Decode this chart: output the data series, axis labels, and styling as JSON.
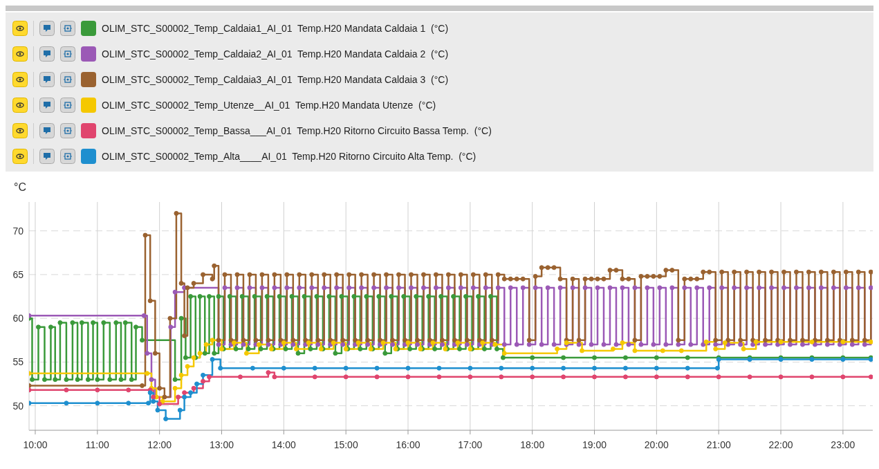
{
  "chart_data": {
    "type": "step",
    "ylabel": "°C",
    "legend": "top",
    "grid": true,
    "marker": "circle",
    "line_style": "solid",
    "xlim": [
      9.9,
      23.48
    ],
    "ylim": [
      47.2,
      73.3
    ],
    "yticks": [
      50,
      55,
      60,
      65,
      70
    ],
    "xticks": [
      {
        "value": 10,
        "label": "10:00"
      },
      {
        "value": 11,
        "label": "11:00"
      },
      {
        "value": 12,
        "label": "12:00"
      },
      {
        "value": 13,
        "label": "13:00"
      },
      {
        "value": 14,
        "label": "14:00"
      },
      {
        "value": 15,
        "label": "15:00"
      },
      {
        "value": 16,
        "label": "16:00"
      },
      {
        "value": 17,
        "label": "17:00"
      },
      {
        "value": 18,
        "label": "18:00"
      },
      {
        "value": 19,
        "label": "19:00"
      },
      {
        "value": 20,
        "label": "20:00"
      },
      {
        "value": 21,
        "label": "21:00"
      },
      {
        "value": 22,
        "label": "22:00"
      },
      {
        "value": 23,
        "label": "23:00"
      }
    ],
    "series": [
      {
        "name": "OLIM_STC_S00002_Temp_Caldaia1_AI_01  Temp.H20 Mandata Caldaia 1  (°C)",
        "color": "#3a9a3a",
        "x": [
          9.9,
          9.95,
          10.05,
          10.15,
          10.25,
          10.32,
          10.4,
          10.5,
          10.6,
          10.68,
          10.75,
          10.85,
          10.93,
          11.0,
          11.1,
          11.2,
          11.3,
          11.38,
          11.45,
          11.55,
          11.62,
          11.72,
          12.25,
          12.35,
          12.42,
          12.5,
          12.58,
          12.65,
          12.73,
          12.8,
          12.88,
          12.95,
          13.03,
          13.13,
          13.23,
          13.33,
          13.43,
          13.53,
          13.63,
          13.73,
          13.83,
          13.93,
          14.03,
          14.13,
          14.23,
          14.33,
          14.43,
          14.53,
          14.63,
          14.73,
          14.83,
          14.93,
          15.03,
          15.13,
          15.23,
          15.33,
          15.43,
          15.53,
          15.63,
          15.73,
          15.83,
          15.93,
          16.03,
          16.13,
          16.23,
          16.33,
          16.43,
          16.53,
          16.63,
          16.73,
          16.83,
          16.93,
          17.03,
          17.13,
          17.23,
          17.33,
          17.43,
          17.53,
          18.0,
          18.5,
          19.0,
          19.5,
          20.0,
          20.5,
          21.0,
          21.5,
          22.0,
          22.5,
          23.0,
          23.45
        ],
        "values": [
          60,
          53,
          59,
          53,
          59,
          53,
          59.5,
          53,
          59.5,
          53,
          59.5,
          53,
          59.5,
          53,
          59.5,
          53,
          59.5,
          53,
          59.5,
          53,
          59,
          57.5,
          53,
          60,
          55.5,
          62.5,
          55.5,
          62.5,
          56,
          62.5,
          56,
          62.5,
          56.5,
          62.5,
          56.5,
          62.5,
          56.5,
          62.5,
          56.5,
          62.5,
          56.5,
          62.5,
          56.5,
          62.5,
          56,
          62.5,
          56.5,
          62.5,
          56.5,
          62.5,
          56,
          62.5,
          56.5,
          62.5,
          56.5,
          62.5,
          56.5,
          62.5,
          56,
          62.5,
          56.5,
          62.5,
          56.5,
          62.5,
          56.5,
          62.5,
          56.5,
          62.5,
          56.5,
          62.5,
          56.5,
          62.5,
          56.5,
          62.5,
          56.5,
          62.5,
          56.5,
          55.5,
          55.5,
          55.5,
          55.5,
          55.5,
          55.5,
          55.5,
          55.5,
          55.5,
          55.5,
          55.5,
          55.5,
          55.5
        ]
      },
      {
        "name": "OLIM_STC_S00002_Temp_Caldaia2_AI_01  Temp.H20 Mandata Caldaia 2  (°C)",
        "color": "#9b59b6",
        "x": [
          9.9,
          11.75,
          11.8,
          11.87,
          11.93,
          12.18,
          12.25,
          12.4,
          12.95,
          13.05,
          13.15,
          13.25,
          13.35,
          13.45,
          13.55,
          13.65,
          13.75,
          13.85,
          13.95,
          14.05,
          14.15,
          14.25,
          14.35,
          14.45,
          14.55,
          14.65,
          14.75,
          14.85,
          14.95,
          15.05,
          15.15,
          15.25,
          15.35,
          15.45,
          15.55,
          15.65,
          15.75,
          15.85,
          15.95,
          16.05,
          16.15,
          16.25,
          16.35,
          16.45,
          16.55,
          16.65,
          16.75,
          16.85,
          16.95,
          17.05,
          17.15,
          17.25,
          17.35,
          17.45,
          17.55,
          17.65,
          17.75,
          17.85,
          17.95,
          18.05,
          18.15,
          18.25,
          18.35,
          18.45,
          18.55,
          18.65,
          18.75,
          18.85,
          18.95,
          19.05,
          19.15,
          19.25,
          19.35,
          19.45,
          19.55,
          19.65,
          19.75,
          19.85,
          19.95,
          20.05,
          20.15,
          20.25,
          20.35,
          20.45,
          20.55,
          20.65,
          20.75,
          20.85,
          20.95,
          21.05,
          21.15,
          21.25,
          21.35,
          21.45,
          21.55,
          21.65,
          21.75,
          21.85,
          21.95,
          22.05,
          22.15,
          22.25,
          22.35,
          22.45,
          22.55,
          22.65,
          22.75,
          22.85,
          22.95,
          23.05,
          23.15,
          23.25,
          23.35,
          23.45
        ],
        "values": [
          60.3,
          60.3,
          56,
          53,
          51,
          59,
          63,
          63.5,
          57,
          63.5,
          57,
          63.5,
          57,
          63.5,
          57,
          63.5,
          57,
          63.5,
          57,
          63.5,
          57,
          63.5,
          57,
          63.5,
          57,
          63.5,
          57,
          63.5,
          57,
          63.5,
          57,
          63.5,
          57,
          63.5,
          57,
          63.5,
          57,
          63.5,
          57,
          63.5,
          57,
          63.5,
          57,
          63.5,
          57,
          63.5,
          57,
          63.5,
          57,
          63.5,
          57,
          63.5,
          57,
          63.5,
          57,
          63.5,
          57,
          63.5,
          57,
          63.5,
          57,
          63.5,
          57,
          63.5,
          57,
          63.5,
          57,
          63.5,
          57,
          63.5,
          57,
          63.5,
          57,
          63.5,
          57,
          63.5,
          57,
          63.5,
          57,
          63.5,
          57,
          63.5,
          57,
          63.5,
          57,
          63.5,
          57,
          63.5,
          57,
          63.5,
          57,
          63.5,
          57,
          63.5,
          57,
          63.5,
          57,
          63.5,
          57,
          63.5,
          57,
          63.5,
          57,
          63.5,
          57,
          63.5,
          57,
          63.5,
          57,
          63.5,
          57,
          63.5,
          57,
          63.5
        ]
      },
      {
        "name": "OLIM_STC_S00002_Temp_Caldaia3_AI_01  Temp.H20 Mandata Caldaia 3  (°C)",
        "color": "#9a6230",
        "x": [
          9.9,
          11.72,
          11.77,
          11.85,
          11.93,
          12.0,
          12.08,
          12.17,
          12.27,
          12.35,
          12.4,
          12.45,
          12.55,
          12.7,
          12.85,
          12.88,
          12.95,
          13.05,
          13.15,
          13.25,
          13.35,
          13.45,
          13.55,
          13.65,
          13.75,
          13.85,
          13.95,
          14.05,
          14.15,
          14.25,
          14.35,
          14.45,
          14.55,
          14.65,
          14.75,
          14.85,
          14.95,
          15.05,
          15.15,
          15.25,
          15.35,
          15.45,
          15.55,
          15.65,
          15.75,
          15.85,
          15.95,
          16.05,
          16.15,
          16.25,
          16.35,
          16.45,
          16.55,
          16.65,
          16.75,
          16.85,
          16.95,
          17.05,
          17.15,
          17.25,
          17.35,
          17.45,
          17.55,
          17.65,
          17.75,
          17.85,
          17.95,
          18.05,
          18.15,
          18.25,
          18.35,
          18.45,
          18.55,
          18.65,
          18.75,
          18.85,
          18.95,
          19.05,
          19.15,
          19.25,
          19.35,
          19.45,
          19.55,
          19.65,
          19.75,
          19.85,
          19.95,
          20.05,
          20.15,
          20.25,
          20.35,
          20.45,
          20.55,
          20.65,
          20.75,
          20.85,
          20.95,
          21.05,
          21.15,
          21.25,
          21.35,
          21.45,
          21.55,
          21.65,
          21.75,
          21.85,
          21.95,
          22.05,
          22.15,
          22.25,
          22.35,
          22.45,
          22.55,
          22.65,
          22.75,
          22.85,
          22.95,
          23.05,
          23.15,
          23.25,
          23.35,
          23.45
        ],
        "values": [
          52.3,
          52.3,
          69.5,
          62,
          56,
          52,
          51,
          60,
          72,
          64,
          58,
          63.5,
          64,
          65,
          64.5,
          66,
          57.5,
          65,
          57.5,
          65,
          57.5,
          65,
          57.5,
          65,
          57.5,
          65,
          57.5,
          65,
          57.5,
          65,
          57.5,
          65,
          57.5,
          65,
          57.5,
          65,
          57.5,
          65,
          57.5,
          65,
          57.5,
          65,
          57.5,
          65,
          57.5,
          65,
          57.5,
          65,
          57.5,
          65,
          57.5,
          65,
          57.5,
          65,
          57.5,
          65,
          57.5,
          65,
          57.5,
          65,
          57.5,
          65,
          64.5,
          64.5,
          64.5,
          64.5,
          57.5,
          64.8,
          65.8,
          65.8,
          65.8,
          64.5,
          57.5,
          64.5,
          57.5,
          64.5,
          64.5,
          64.5,
          64.5,
          65.5,
          65.5,
          64.5,
          64.5,
          57.5,
          64.8,
          64.8,
          64.8,
          64.8,
          65.5,
          65.5,
          57.5,
          64.5,
          64.5,
          64.5,
          65.3,
          65.3,
          57.5,
          65.3,
          57.5,
          65.3,
          57.5,
          65.3,
          57.5,
          65.3,
          57.5,
          65.3,
          57.5,
          65.3,
          57.5,
          65.3,
          57.5,
          65.3,
          57.5,
          65.3,
          57.5,
          65.3,
          57.5,
          65.3,
          57.5,
          65.3,
          57.5,
          65.3
        ]
      },
      {
        "name": "OLIM_STC_S00002_Temp_Utenze__AI_01  Temp.H20 Mandata Utenze  (°C)",
        "color": "#f5c800",
        "x": [
          9.9,
          11.8,
          11.87,
          11.95,
          12.05,
          12.25,
          12.35,
          12.45,
          12.55,
          12.65,
          12.75,
          12.85,
          13.0,
          13.2,
          13.4,
          13.6,
          13.8,
          14.0,
          14.2,
          14.4,
          14.6,
          14.8,
          15.0,
          15.2,
          15.4,
          15.6,
          15.8,
          16.0,
          16.2,
          16.4,
          16.6,
          16.8,
          17.0,
          17.2,
          17.4,
          17.55,
          18.4,
          18.55,
          18.8,
          19.3,
          19.45,
          19.65,
          20.1,
          20.4,
          20.8,
          20.95,
          21.1,
          21.4,
          21.6,
          22.0,
          22.5,
          23.0,
          23.45
        ],
        "values": [
          53.7,
          53.7,
          52,
          51,
          50.5,
          52,
          53.5,
          54.5,
          55.5,
          56,
          57,
          57.5,
          56.5,
          57.2,
          56,
          57,
          56.5,
          57.2,
          56.5,
          57.2,
          56.5,
          57.2,
          56.5,
          57.2,
          56.5,
          57.2,
          56.5,
          57.2,
          56.5,
          57.2,
          56.5,
          57.2,
          56.5,
          57.2,
          57,
          56,
          56.5,
          57.2,
          56.3,
          56.5,
          57.2,
          56.3,
          56.3,
          56.3,
          57.3,
          56.5,
          57.2,
          56.5,
          57.3,
          57.3,
          57.3,
          57.3,
          57.3
        ]
      },
      {
        "name": "OLIM_STC_S00002_Temp_Bassa___AI_01  Temp.H20 Ritorno Circuito Bassa Temp.  (°C)",
        "color": "#e0456e",
        "x": [
          9.9,
          10.5,
          11.0,
          11.5,
          11.85,
          11.9,
          12.0,
          12.3,
          12.4,
          12.55,
          12.7,
          12.8,
          13.3,
          13.75,
          13.85,
          14.5,
          15.0,
          15.5,
          16.0,
          16.5,
          17.0,
          17.5,
          18.0,
          18.5,
          19.0,
          19.5,
          20.0,
          20.5,
          21.0,
          21.5,
          22.0,
          22.5,
          23.0,
          23.45
        ],
        "values": [
          51.8,
          51.8,
          51.8,
          51.8,
          51.8,
          51,
          50.2,
          51,
          51.5,
          52,
          52.8,
          53.3,
          53.3,
          53.8,
          53.3,
          53.3,
          53.3,
          53.3,
          53.3,
          53.3,
          53.3,
          53.3,
          53.3,
          53.3,
          53.3,
          53.3,
          53.3,
          53.3,
          53.3,
          53.3,
          53.3,
          53.3,
          53.3,
          53.3
        ]
      },
      {
        "name": "OLIM_STC_S00002_Temp_Alta____AI_01  Temp.H20 Ritorno Circuito Alta Temp.  (°C)",
        "color": "#1e8fcf",
        "x": [
          9.9,
          10.5,
          11.0,
          11.5,
          11.82,
          11.85,
          11.9,
          11.97,
          12.1,
          12.33,
          12.4,
          12.5,
          12.6,
          12.7,
          12.85,
          12.98,
          13.5,
          14.0,
          14.5,
          15.0,
          15.5,
          16.0,
          16.5,
          17.0,
          17.5,
          18.0,
          18.5,
          19.0,
          19.5,
          20.0,
          20.5,
          20.98,
          21.0,
          21.5,
          22.0,
          22.5,
          23.0,
          23.45
        ],
        "values": [
          50.3,
          50.3,
          50.3,
          50.3,
          50.3,
          51.5,
          50.5,
          49.5,
          48.5,
          49.5,
          51,
          51.5,
          52.5,
          53.5,
          55.3,
          54.3,
          54.3,
          54.3,
          54.3,
          54.3,
          54.3,
          54.3,
          54.3,
          54.3,
          54.3,
          54.3,
          54.3,
          54.3,
          54.3,
          54.3,
          54.3,
          54.3,
          55.3,
          55.3,
          55.3,
          55.3,
          55.3,
          55.3
        ]
      }
    ]
  }
}
